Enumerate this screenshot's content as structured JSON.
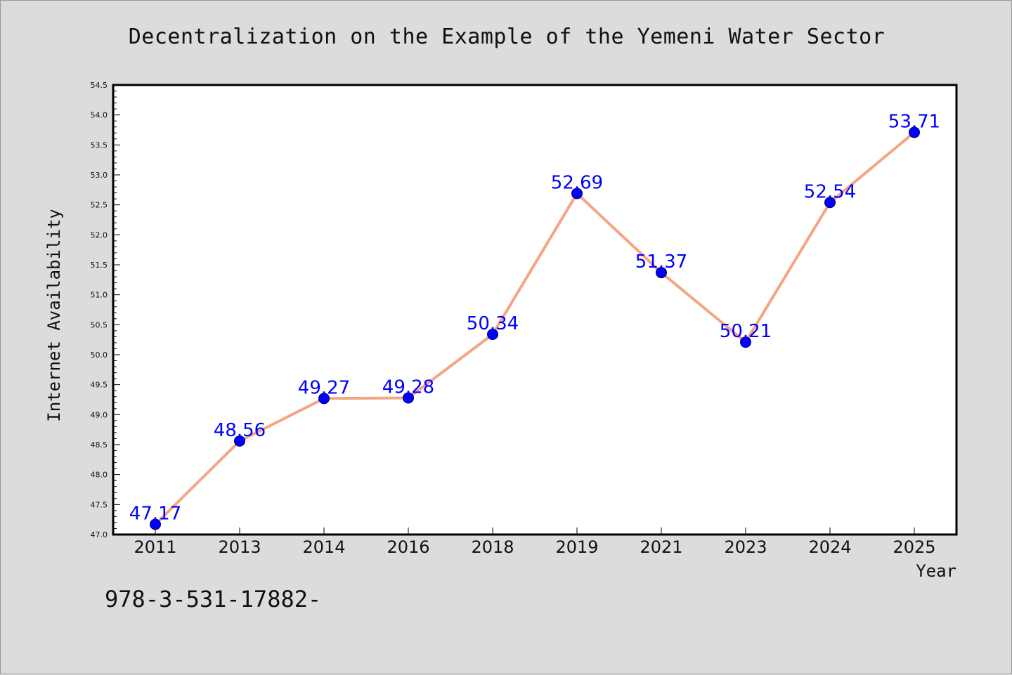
{
  "chart_data": {
    "type": "line",
    "title": "Decentralization on the Example of the Yemeni Water Sector",
    "xlabel": "Year",
    "ylabel": "Internet Availability",
    "categories": [
      "2011",
      "2013",
      "2014",
      "2016",
      "2018",
      "2019",
      "2021",
      "2023",
      "2024",
      "2025"
    ],
    "values": [
      47.17,
      48.56,
      49.27,
      49.28,
      50.34,
      52.69,
      51.37,
      50.21,
      52.54,
      53.71
    ],
    "data_labels": [
      "47.17",
      "48.56",
      "49.27",
      "49.28",
      "50.34",
      "52.69",
      "51.37",
      "50.21",
      "52.54",
      "53.71"
    ],
    "ylim": [
      47.0,
      54.5
    ],
    "yticks": [
      "47.0",
      "47.5",
      "48.0",
      "48.5",
      "49.0",
      "49.5",
      "50.0",
      "50.5",
      "51.0",
      "51.5",
      "52.0",
      "52.5",
      "53.0",
      "53.5",
      "54.0",
      "54.5"
    ],
    "grid": false,
    "line_color": "#f4a582",
    "marker_color": "#0000ff",
    "label_color": "#0000ff"
  },
  "footer_text": "978-3-531-17882-"
}
